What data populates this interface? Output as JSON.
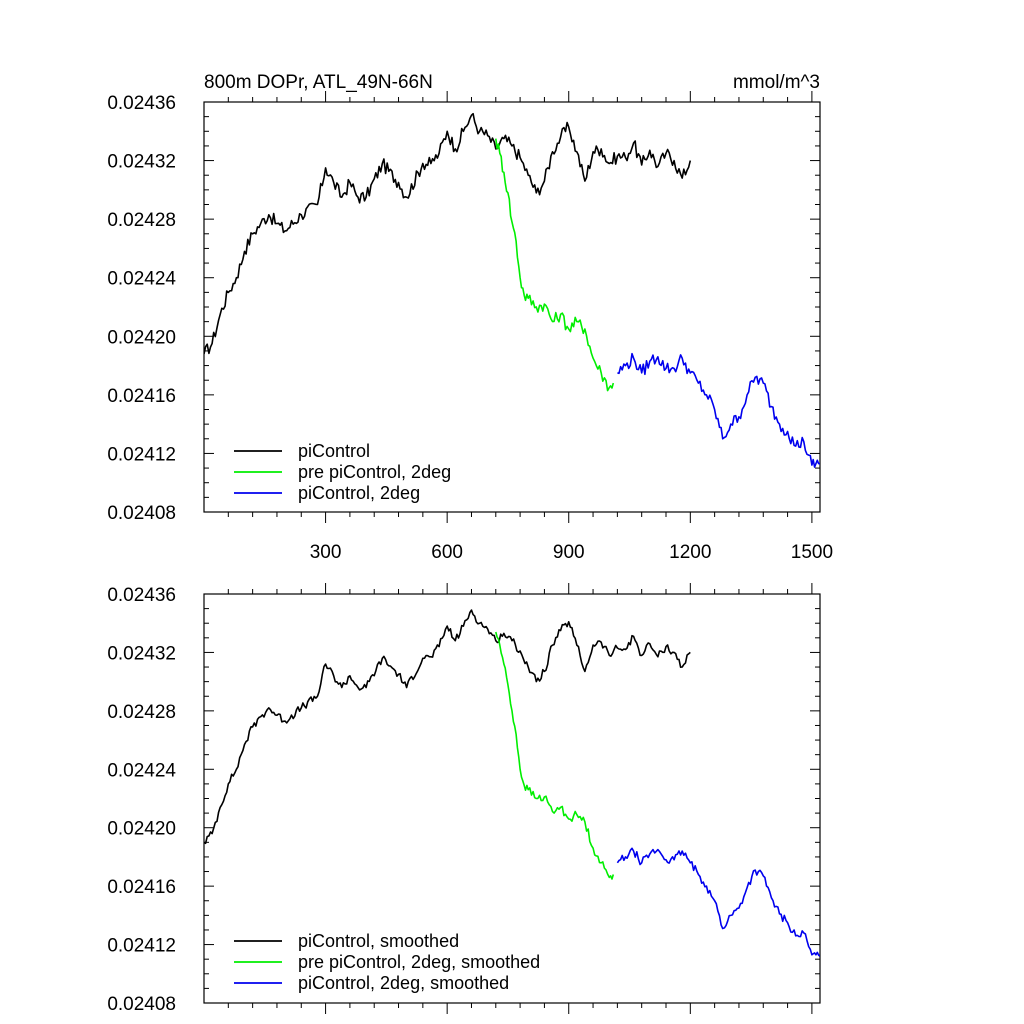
{
  "chart_data": [
    {
      "type": "line",
      "title": "800m DOPr, ATL_49N-66N",
      "units": "mmol/m^3",
      "xlim": [
        0,
        1520
      ],
      "ylim": [
        0.02408,
        0.02436
      ],
      "x_ticks": [
        300,
        600,
        900,
        1200,
        1500
      ],
      "x_tick_labels": [
        "300",
        "600",
        "900",
        "1200",
        "1500"
      ],
      "y_ticks": [
        0.02408,
        0.02412,
        0.02416,
        0.0242,
        0.02424,
        0.02428,
        0.02432,
        0.02436
      ],
      "y_tick_labels": [
        "0.02408",
        "0.02412",
        "0.02416",
        "0.02420",
        "0.02424",
        "0.02428",
        "0.02432",
        "0.02436"
      ],
      "legend_position": "bottom-left",
      "series": [
        {
          "name": "piControl",
          "color": "#000000",
          "x": [
            0,
            20,
            40,
            60,
            80,
            100,
            120,
            140,
            160,
            180,
            200,
            240,
            280,
            300,
            320,
            340,
            360,
            380,
            400,
            440,
            480,
            500,
            540,
            560,
            580,
            600,
            620,
            640,
            660,
            680,
            700,
            720,
            740,
            760,
            780,
            800,
            820,
            840,
            860,
            880,
            900,
            920,
            940,
            960,
            980,
            1000,
            1020,
            1040,
            1060,
            1080,
            1100,
            1120,
            1140,
            1160,
            1180,
            1200
          ],
          "y": [
            0.024188,
            0.024195,
            0.024215,
            0.02423,
            0.02424,
            0.024258,
            0.02427,
            0.024277,
            0.024283,
            0.024277,
            0.024272,
            0.024283,
            0.02429,
            0.024315,
            0.024305,
            0.024295,
            0.024305,
            0.024295,
            0.024295,
            0.024318,
            0.024305,
            0.024295,
            0.024318,
            0.024318,
            0.024325,
            0.02434,
            0.024328,
            0.02434,
            0.024351,
            0.02434,
            0.024337,
            0.024328,
            0.024335,
            0.02433,
            0.024322,
            0.02431,
            0.024298,
            0.024306,
            0.024326,
            0.024336,
            0.024343,
            0.024326,
            0.024306,
            0.024326,
            0.024328,
            0.024318,
            0.024323,
            0.024322,
            0.024332,
            0.024317,
            0.024327,
            0.024316,
            0.024325,
            0.02432,
            0.024308,
            0.02432
          ]
        },
        {
          "name": "pre piControl, 2deg",
          "color": "#00ee00",
          "x": [
            720,
            730,
            740,
            750,
            760,
            770,
            780,
            790,
            800,
            820,
            840,
            860,
            880,
            900,
            920,
            940,
            960,
            980,
            1000,
            1010
          ],
          "y": [
            0.024335,
            0.024325,
            0.024312,
            0.024298,
            0.024278,
            0.024265,
            0.02424,
            0.024228,
            0.024226,
            0.02422,
            0.024222,
            0.02421,
            0.024215,
            0.024205,
            0.02421,
            0.024205,
            0.024185,
            0.024175,
            0.024165,
            0.024168
          ]
        },
        {
          "name": "piControl, 2deg",
          "color": "#0000ee",
          "x": [
            1020,
            1040,
            1060,
            1080,
            1100,
            1120,
            1140,
            1160,
            1180,
            1200,
            1220,
            1240,
            1260,
            1280,
            1300,
            1320,
            1340,
            1360,
            1380,
            1400,
            1420,
            1440,
            1460,
            1480,
            1500,
            1510,
            1520
          ],
          "y": [
            0.024175,
            0.02418,
            0.024185,
            0.024175,
            0.024183,
            0.024186,
            0.024178,
            0.024178,
            0.024185,
            0.024175,
            0.024168,
            0.02416,
            0.02415,
            0.02413,
            0.02414,
            0.024145,
            0.02416,
            0.024172,
            0.024168,
            0.024152,
            0.02414,
            0.024135,
            0.024125,
            0.024128,
            0.024112,
            0.024113,
            0.024113
          ]
        }
      ]
    },
    {
      "type": "line",
      "title": "",
      "xlim": [
        0,
        1520
      ],
      "ylim": [
        0.02408,
        0.02436
      ],
      "x_ticks": [
        300,
        600,
        900,
        1200,
        1500
      ],
      "y_ticks": [
        0.02408,
        0.02412,
        0.02416,
        0.0242,
        0.02424,
        0.02428,
        0.02432,
        0.02436
      ],
      "y_tick_labels": [
        "0.02408",
        "0.02412",
        "0.02416",
        "0.02420",
        "0.02424",
        "0.02428",
        "0.02432",
        "0.02436"
      ],
      "legend_position": "bottom-left",
      "series": [
        {
          "name": "piControl, smoothed",
          "color": "#000000",
          "x": [
            0,
            20,
            40,
            60,
            80,
            100,
            120,
            140,
            160,
            180,
            200,
            240,
            280,
            300,
            320,
            340,
            360,
            380,
            400,
            440,
            480,
            500,
            540,
            560,
            580,
            600,
            620,
            640,
            660,
            680,
            700,
            720,
            740,
            760,
            780,
            800,
            820,
            840,
            860,
            880,
            900,
            920,
            940,
            960,
            980,
            1000,
            1020,
            1040,
            1060,
            1080,
            1100,
            1120,
            1140,
            1160,
            1180,
            1200
          ],
          "y": [
            0.02419,
            0.024196,
            0.024214,
            0.02423,
            0.02424,
            0.024257,
            0.024269,
            0.024276,
            0.024282,
            0.024277,
            0.024273,
            0.024282,
            0.02429,
            0.024312,
            0.024304,
            0.024296,
            0.024304,
            0.024296,
            0.024296,
            0.024316,
            0.024305,
            0.024296,
            0.024316,
            0.024317,
            0.024324,
            0.024338,
            0.024328,
            0.024338,
            0.024349,
            0.02434,
            0.024336,
            0.024328,
            0.024333,
            0.024328,
            0.024321,
            0.02431,
            0.0243,
            0.024307,
            0.024325,
            0.024335,
            0.024341,
            0.024325,
            0.024307,
            0.024325,
            0.024327,
            0.024318,
            0.024323,
            0.024322,
            0.024331,
            0.024318,
            0.024326,
            0.024317,
            0.024324,
            0.02432,
            0.02431,
            0.02432
          ]
        },
        {
          "name": "pre piControl, 2deg, smoothed",
          "color": "#00ee00",
          "x": [
            720,
            730,
            740,
            750,
            760,
            770,
            780,
            790,
            800,
            820,
            840,
            860,
            880,
            900,
            920,
            940,
            960,
            980,
            1000,
            1010
          ],
          "y": [
            0.024334,
            0.024325,
            0.024312,
            0.024298,
            0.02428,
            0.024264,
            0.02424,
            0.024229,
            0.024226,
            0.02422,
            0.024221,
            0.024211,
            0.024214,
            0.024206,
            0.024209,
            0.024204,
            0.024186,
            0.024176,
            0.024166,
            0.024168
          ]
        },
        {
          "name": "piControl, 2deg, smoothed",
          "color": "#0000ee",
          "x": [
            1020,
            1040,
            1060,
            1080,
            1100,
            1120,
            1140,
            1160,
            1180,
            1200,
            1220,
            1240,
            1260,
            1280,
            1300,
            1320,
            1340,
            1360,
            1380,
            1400,
            1420,
            1440,
            1460,
            1480,
            1500,
            1510,
            1520
          ],
          "y": [
            0.024176,
            0.02418,
            0.024184,
            0.024176,
            0.024182,
            0.024185,
            0.024178,
            0.024178,
            0.024184,
            0.024176,
            0.024168,
            0.02416,
            0.02415,
            0.024131,
            0.02414,
            0.024145,
            0.024159,
            0.024171,
            0.024167,
            0.024152,
            0.024141,
            0.024135,
            0.024126,
            0.024128,
            0.024113,
            0.024113,
            0.024112
          ]
        }
      ]
    }
  ]
}
